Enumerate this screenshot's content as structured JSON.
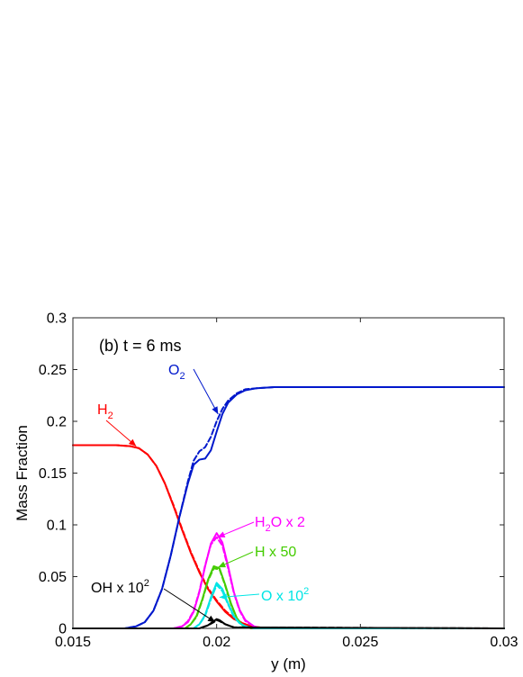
{
  "chart_data": {
    "type": "line",
    "title": "",
    "xlabel": "y (m)",
    "ylabel": "Mass Fraction",
    "xlim": [
      0.015,
      0.03
    ],
    "ylim": [
      0,
      0.3
    ],
    "xticks": [
      0.015,
      0.02,
      0.025,
      0.03
    ],
    "xtick_labels": [
      "0.015",
      "0.02",
      "0.025",
      "0.03"
    ],
    "yticks": [
      0,
      0.05,
      0.1,
      0.15,
      0.2,
      0.25,
      0.3
    ],
    "ytick_labels": [
      "0",
      "0.05",
      "0.1",
      "0.15",
      "0.2",
      "0.25",
      "0.3"
    ],
    "grid": false,
    "panel_label": "(b) t = 6 ms",
    "series": [
      {
        "name": "H2",
        "color": "#ff0000",
        "linestyle": "solid",
        "x": [
          0.015,
          0.0165,
          0.017,
          0.0173,
          0.0176,
          0.0179,
          0.0182,
          0.0185,
          0.0188,
          0.0191,
          0.0194,
          0.0197,
          0.02,
          0.0203,
          0.0206,
          0.0209,
          0.0212,
          0.0215,
          0.022,
          0.03
        ],
        "y": [
          0.177,
          0.177,
          0.176,
          0.174,
          0.168,
          0.157,
          0.14,
          0.118,
          0.095,
          0.073,
          0.054,
          0.038,
          0.026,
          0.016,
          0.009,
          0.005,
          0.002,
          0.001,
          0,
          0
        ]
      },
      {
        "name": "H2",
        "color": "#ff0000",
        "linestyle": "dashed",
        "x": [
          0.015,
          0.0165,
          0.017,
          0.0173,
          0.0176,
          0.0179,
          0.0182,
          0.0185,
          0.0188,
          0.0191,
          0.0194,
          0.0197,
          0.02,
          0.0203,
          0.0206,
          0.0209,
          0.0212,
          0.0215,
          0.022,
          0.03
        ],
        "y": [
          0.177,
          0.177,
          0.176,
          0.174,
          0.168,
          0.157,
          0.14,
          0.119,
          0.096,
          0.074,
          0.055,
          0.039,
          0.027,
          0.017,
          0.01,
          0.005,
          0.002,
          0.001,
          0,
          0
        ]
      },
      {
        "name": "O2",
        "color": "#0018cc",
        "linestyle": "solid",
        "x": [
          0.015,
          0.0168,
          0.0172,
          0.0175,
          0.0178,
          0.0181,
          0.0184,
          0.0187,
          0.019,
          0.0192,
          0.0194,
          0.0196,
          0.0198,
          0.02,
          0.0202,
          0.0204,
          0.0207,
          0.021,
          0.0214,
          0.022,
          0.0225,
          0.03
        ],
        "y": [
          0,
          0,
          0.002,
          0.006,
          0.017,
          0.038,
          0.07,
          0.107,
          0.14,
          0.158,
          0.163,
          0.164,
          0.172,
          0.19,
          0.207,
          0.218,
          0.226,
          0.23,
          0.232,
          0.233,
          0.233,
          0.233
        ]
      },
      {
        "name": "O2",
        "color": "#0018cc",
        "linestyle": "dashed",
        "x": [
          0.015,
          0.0168,
          0.0172,
          0.0175,
          0.0178,
          0.0181,
          0.0184,
          0.0187,
          0.019,
          0.0192,
          0.0194,
          0.0196,
          0.0198,
          0.02,
          0.0202,
          0.0204,
          0.0207,
          0.021,
          0.0214,
          0.022,
          0.0225,
          0.03
        ],
        "y": [
          0,
          0,
          0.002,
          0.006,
          0.017,
          0.038,
          0.07,
          0.107,
          0.142,
          0.162,
          0.171,
          0.175,
          0.185,
          0.2,
          0.212,
          0.22,
          0.227,
          0.231,
          0.232,
          0.233,
          0.233,
          0.233
        ]
      },
      {
        "name": "H2O x 2",
        "color": "#ff00ff",
        "linestyle": "solid",
        "x": [
          0.015,
          0.0185,
          0.0188,
          0.019,
          0.0192,
          0.0194,
          0.0196,
          0.0198,
          0.02,
          0.0202,
          0.0204,
          0.0206,
          0.0208,
          0.021,
          0.0213,
          0.0215,
          0.03
        ],
        "y": [
          0,
          0,
          0.002,
          0.006,
          0.016,
          0.035,
          0.06,
          0.082,
          0.092,
          0.083,
          0.06,
          0.035,
          0.018,
          0.008,
          0.002,
          0,
          0
        ]
      },
      {
        "name": "H2O x 2",
        "color": "#ff00ff",
        "linestyle": "dashed",
        "x": [
          0.015,
          0.0185,
          0.0188,
          0.019,
          0.0192,
          0.0194,
          0.0196,
          0.0198,
          0.02,
          0.0202,
          0.0204,
          0.0206,
          0.0208,
          0.021,
          0.0213,
          0.0215,
          0.03
        ],
        "y": [
          0,
          0,
          0.002,
          0.007,
          0.017,
          0.036,
          0.061,
          0.081,
          0.088,
          0.08,
          0.058,
          0.034,
          0.017,
          0.007,
          0.002,
          0,
          0
        ]
      },
      {
        "name": "H x 50",
        "color": "#44cc00",
        "linestyle": "solid",
        "x": [
          0.015,
          0.0189,
          0.0191,
          0.0193,
          0.0195,
          0.0197,
          0.0199,
          0.0201,
          0.0203,
          0.0205,
          0.0207,
          0.0209,
          0.0212,
          0.03
        ],
        "y": [
          0,
          0,
          0.004,
          0.012,
          0.028,
          0.047,
          0.06,
          0.058,
          0.042,
          0.024,
          0.01,
          0.003,
          0,
          0
        ]
      },
      {
        "name": "H x 50",
        "color": "#44cc00",
        "linestyle": "dashed",
        "x": [
          0.015,
          0.0189,
          0.0191,
          0.0193,
          0.0195,
          0.0197,
          0.0199,
          0.0201,
          0.0203,
          0.0205,
          0.0207,
          0.0209,
          0.0212,
          0.03
        ],
        "y": [
          0,
          0,
          0.004,
          0.011,
          0.027,
          0.046,
          0.058,
          0.057,
          0.041,
          0.023,
          0.01,
          0.003,
          0,
          0
        ]
      },
      {
        "name": "O x 10^2",
        "color": "#00e5e5",
        "linestyle": "solid",
        "x": [
          0.015,
          0.0192,
          0.0194,
          0.0196,
          0.0198,
          0.02,
          0.0202,
          0.0204,
          0.0206,
          0.0208,
          0.021,
          0.0213,
          0.03
        ],
        "y": [
          0,
          0,
          0.004,
          0.013,
          0.03,
          0.044,
          0.038,
          0.024,
          0.012,
          0.005,
          0.002,
          0,
          0
        ]
      },
      {
        "name": "O x 10^2",
        "color": "#00e5e5",
        "linestyle": "dashed",
        "x": [
          0.015,
          0.0192,
          0.0194,
          0.0196,
          0.0198,
          0.02,
          0.0202,
          0.0204,
          0.0206,
          0.0208,
          0.021,
          0.0213,
          0.03
        ],
        "y": [
          0,
          0,
          0.004,
          0.012,
          0.028,
          0.042,
          0.036,
          0.023,
          0.011,
          0.005,
          0.002,
          0,
          0
        ]
      },
      {
        "name": "OH x 10^2",
        "color": "#000000",
        "linestyle": "solid",
        "x": [
          0.015,
          0.0194,
          0.0197,
          0.0199,
          0.02,
          0.0201,
          0.0203,
          0.0206,
          0.03
        ],
        "y": [
          0,
          0,
          0.003,
          0.007,
          0.009,
          0.008,
          0.004,
          0.001,
          0
        ]
      },
      {
        "name": "OH x 10^2",
        "color": "#000000",
        "linestyle": "dashed",
        "x": [
          0.015,
          0.0194,
          0.0197,
          0.0199,
          0.02,
          0.0201,
          0.0203,
          0.0206,
          0.03
        ],
        "y": [
          0,
          0,
          0.003,
          0.006,
          0.008,
          0.007,
          0.004,
          0.001,
          0
        ]
      }
    ],
    "annotations": [
      {
        "id": "h2",
        "color": "#ff0000",
        "parts": [
          [
            "H",
            "n"
          ],
          [
            "2",
            "sub"
          ]
        ],
        "arrow_to": [
          0.0172,
          0.176
        ]
      },
      {
        "id": "o2",
        "color": "#0018cc",
        "parts": [
          [
            "O",
            "n"
          ],
          [
            "2",
            "sub"
          ]
        ],
        "arrow_to": [
          0.02005,
          0.207
        ]
      },
      {
        "id": "h2o",
        "color": "#ff00ff",
        "parts": [
          [
            "H",
            "n"
          ],
          [
            "2",
            "sub"
          ],
          [
            "O x 2",
            "n"
          ]
        ],
        "arrow_to": [
          0.02003,
          0.088
        ]
      },
      {
        "id": "h",
        "color": "#44cc00",
        "parts": [
          [
            "H x 50",
            "n"
          ]
        ],
        "arrow_to": [
          0.02005,
          0.059
        ]
      },
      {
        "id": "o",
        "color": "#00e5e5",
        "parts": [
          [
            "O x 10",
            "n"
          ],
          [
            "2",
            "sup"
          ]
        ],
        "arrow_to": [
          0.0201,
          0.03
        ]
      },
      {
        "id": "oh",
        "color": "#000000",
        "parts": [
          [
            "OH x 10",
            "n"
          ],
          [
            "2",
            "sup"
          ]
        ],
        "arrow_to": [
          0.01995,
          0.006
        ]
      }
    ]
  }
}
